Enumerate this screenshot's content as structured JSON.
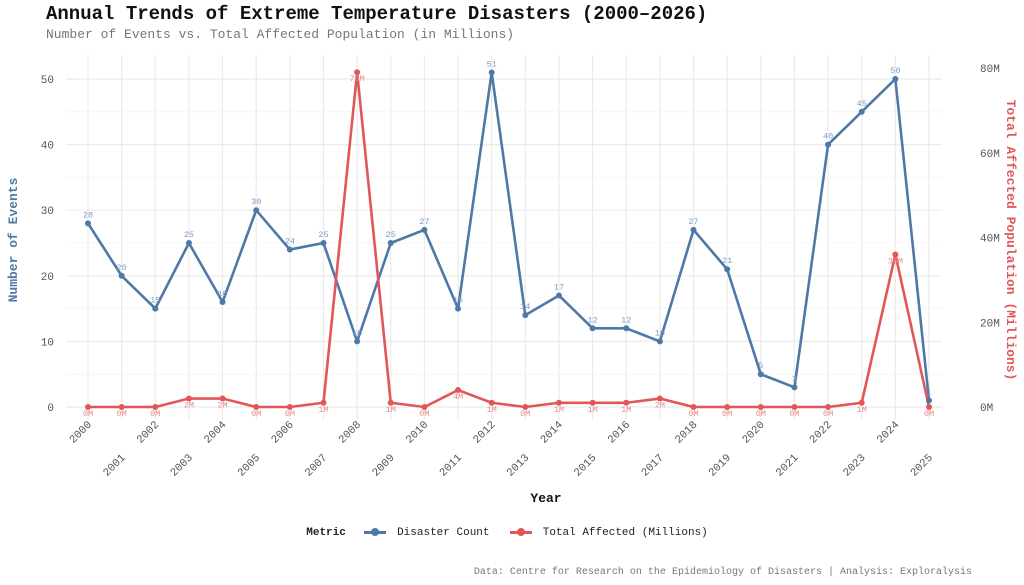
{
  "chart_data": {
    "type": "line",
    "title": "Annual Trends of Extreme Temperature Disasters (2000–2026)",
    "subtitle": "Number of Events vs. Total Affected Population (in Millions)",
    "xlabel": "Year",
    "ylabel": "Number of Events",
    "y2label": "Total Affected Population (Millions)",
    "x": [
      2000,
      2001,
      2002,
      2003,
      2004,
      2005,
      2006,
      2007,
      2008,
      2009,
      2010,
      2011,
      2012,
      2013,
      2014,
      2015,
      2016,
      2017,
      2018,
      2019,
      2020,
      2021,
      2022,
      2023,
      2024,
      2025
    ],
    "ylim": [
      0,
      53
    ],
    "y_ticks": [
      0,
      10,
      20,
      30,
      40,
      50
    ],
    "y2_ticks": [
      "0M",
      "20M",
      "40M",
      "60M",
      "80M"
    ],
    "y2_tick_values": [
      0,
      20,
      40,
      60,
      80
    ],
    "y2lim": [
      0,
      84
    ],
    "grid": true,
    "legend_title": "Metric",
    "legend_position": "bottom",
    "series": [
      {
        "name": "Disaster Count",
        "axis": "left",
        "color": "#4E79A7",
        "values": [
          28,
          20,
          15,
          25,
          16,
          30,
          24,
          25,
          10,
          25,
          27,
          15,
          51,
          14,
          17,
          12,
          12,
          10,
          27,
          21,
          5,
          3,
          40,
          45,
          50,
          1
        ]
      },
      {
        "name": "Total Affected (Millions)",
        "axis": "right",
        "color": "#E15759",
        "values": [
          0,
          0,
          0,
          2,
          2,
          0,
          0,
          1,
          79,
          1,
          0,
          4,
          1,
          0,
          1,
          1,
          1,
          2,
          0,
          0,
          0,
          0,
          0,
          1,
          36,
          0
        ],
        "labels": [
          "0M",
          "0M",
          "0M",
          "2M",
          "2M",
          "0M",
          "0M",
          "1M",
          "79M",
          "1M",
          "0M",
          "4M",
          "1M",
          "0M",
          "1M",
          "1M",
          "1M",
          "2M",
          "0M",
          "0M",
          "0M",
          "0M",
          "0M",
          "1M",
          "36M",
          "0M"
        ]
      }
    ],
    "caption": "Data: Centre for Research on the Epidemiology of Disasters | Analysis: Exploralysis"
  }
}
